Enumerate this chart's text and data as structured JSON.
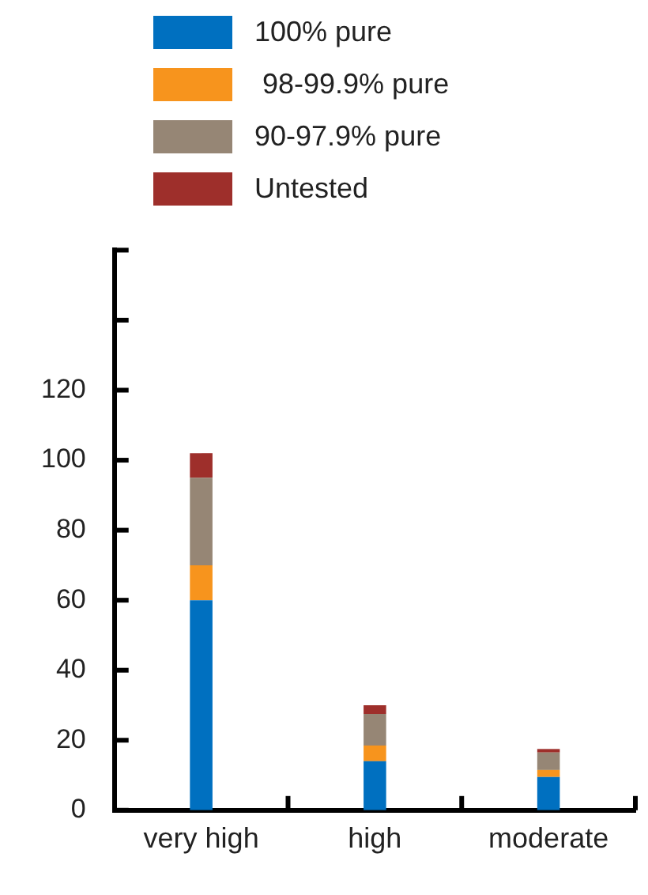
{
  "chart_data": {
    "type": "bar",
    "stacked": true,
    "categories": [
      "very high",
      "high",
      "moderate"
    ],
    "series": [
      {
        "name": "100% pure",
        "color": "#0070c0",
        "values": [
          60,
          14,
          9.5
        ]
      },
      {
        "name": " 98-99.9% pure",
        "color": "#f7941d",
        "values": [
          10,
          4.5,
          2
        ]
      },
      {
        "name": "90-97.9% pure",
        "color": "#968675",
        "values": [
          25,
          9,
          5
        ]
      },
      {
        "name": "Untested",
        "color": "#9e2f2b",
        "values": [
          7,
          2.5,
          1
        ]
      }
    ],
    "ylim": [
      0,
      160
    ],
    "yticks": [
      0,
      20,
      40,
      60,
      80,
      100,
      120,
      {
        "value": 140,
        "label": null
      },
      {
        "value": 160,
        "label": null
      }
    ],
    "grid": false,
    "legend": "top"
  }
}
